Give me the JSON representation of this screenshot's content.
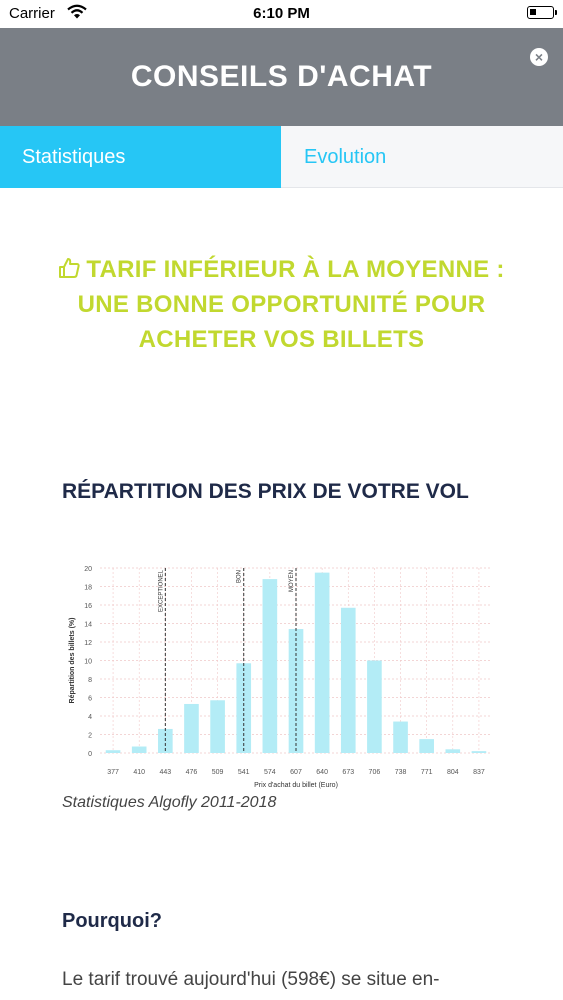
{
  "status_bar": {
    "carrier": "Carrier",
    "time": "6:10 PM"
  },
  "header": {
    "title": "CONSEILS D'ACHAT",
    "close_icon": "close-icon"
  },
  "tabs": [
    {
      "label": "Statistiques",
      "active": true
    },
    {
      "label": "Evolution",
      "active": false
    }
  ],
  "recommendation": {
    "icon": "thumbs-up-icon",
    "text": "TARIF INFÉRIEUR À LA MOYENNE : UNE BONNE OPPORTUNITÉ POUR ACHETER VOS BILLETS",
    "color": "#c1d82f"
  },
  "distribution": {
    "title": "RÉPARTITION DES PRIX DE VOTRE VOL",
    "caption": "Statistiques Algofly 2011-2018"
  },
  "why": {
    "title": "Pourquoi?",
    "text": "Le tarif trouvé aujourd'hui (598€) se situe en-"
  },
  "colors": {
    "header": "#7a7f86",
    "accent": "#26c6f5",
    "bar": "#b3ecf6",
    "recommendation": "#c1d82f"
  },
  "chart_data": {
    "type": "bar",
    "categories": [
      "377",
      "410",
      "443",
      "476",
      "509",
      "541",
      "574",
      "607",
      "640",
      "673",
      "706",
      "738",
      "771",
      "804",
      "837"
    ],
    "values": [
      0.3,
      0.7,
      2.6,
      5.3,
      5.7,
      9.7,
      18.8,
      13.4,
      19.5,
      15.7,
      10.0,
      3.4,
      1.5,
      0.4,
      0.2
    ],
    "xlabel": "Prix d'achat du billet (Euro)",
    "ylabel": "Répartition des billets (%)",
    "ylim": [
      0,
      20
    ],
    "yticks": [
      0,
      2,
      4,
      6,
      8,
      10,
      12,
      14,
      16,
      18,
      20
    ],
    "grid": true,
    "annotations": [
      {
        "label": "EXCEPTIONEL",
        "x": 443
      },
      {
        "label": "BON",
        "x": 541
      },
      {
        "label": "MOYEN",
        "x": 607
      }
    ]
  }
}
